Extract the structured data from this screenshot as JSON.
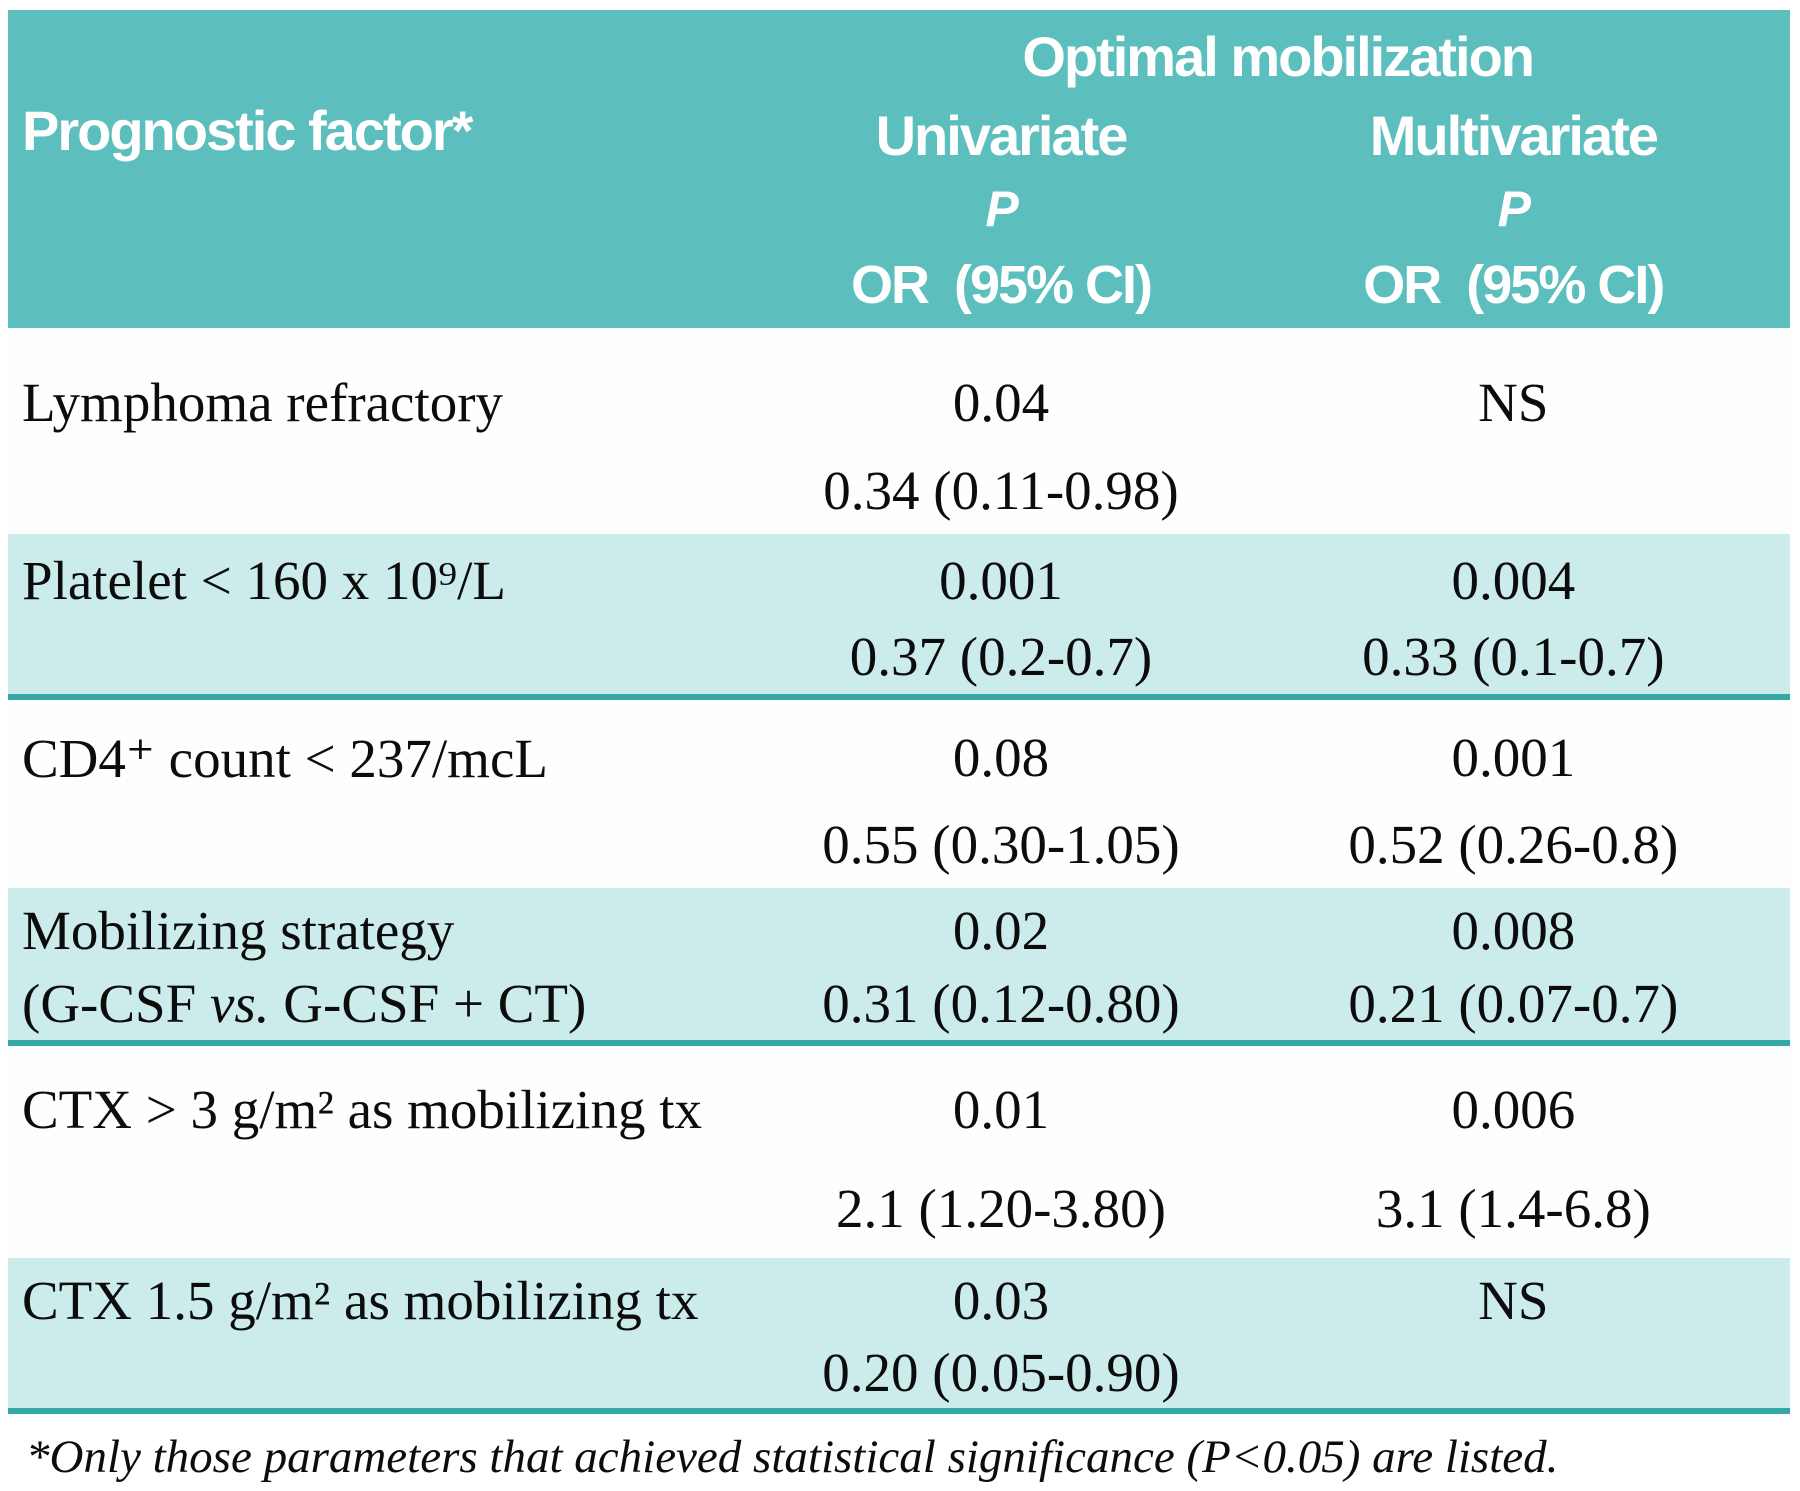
{
  "colors": {
    "header_bg": "#5cbebd",
    "alt_row_bg": "#cbecea",
    "separator_line": "#35a8a6",
    "header_text": "#ffffff",
    "body_text": "#0c0c0c"
  },
  "table": {
    "header": {
      "factor_col": "Prognostic factor*",
      "group_title": "Optimal mobilization",
      "univariate": "Univariate",
      "multivariate": "Multivariate",
      "p_label": "P",
      "or_ci_label": "OR  (95% CI)"
    },
    "rows": [
      {
        "factor": "Lymphoma refractory",
        "univariate_p": "0.04",
        "univariate_or_ci": "0.34 (0.11-0.98)",
        "multivariate_p": "NS",
        "multivariate_or_ci": ""
      },
      {
        "factor": "Platelet < 160 x 10⁹/L",
        "univariate_p": "0.001",
        "univariate_or_ci": "0.37 (0.2-0.7)",
        "multivariate_p": "0.004",
        "multivariate_or_ci": "0.33 (0.1-0.7)"
      },
      {
        "factor": "CD4⁺ count < 237/mcL",
        "univariate_p": "0.08",
        "univariate_or_ci": "0.55 (0.30-1.05)",
        "multivariate_p": "0.001",
        "multivariate_or_ci": "0.52 (0.26-0.8)"
      },
      {
        "factor": "Mobilizing strategy",
        "factor_line2_pre": "(G-CSF ",
        "factor_line2_vs": "vs.",
        "factor_line2_post": " G-CSF + CT)",
        "univariate_p": "0.02",
        "univariate_or_ci": "0.31 (0.12-0.80)",
        "multivariate_p": "0.008",
        "multivariate_or_ci": "0.21 (0.07-0.7)"
      },
      {
        "factor": "CTX > 3 g/m² as mobilizing tx",
        "univariate_p": "0.01",
        "univariate_or_ci": "2.1 (1.20-3.80)",
        "multivariate_p": "0.006",
        "multivariate_or_ci": "3.1 (1.4-6.8)"
      },
      {
        "factor": "CTX 1.5 g/m² as mobilizing tx",
        "univariate_p": "0.03",
        "univariate_or_ci": "0.20 (0.05-0.90)",
        "multivariate_p": "NS",
        "multivariate_or_ci": ""
      }
    ],
    "footnote": "*Only those parameters that achieved statistical significance (P<0.05) are listed."
  }
}
